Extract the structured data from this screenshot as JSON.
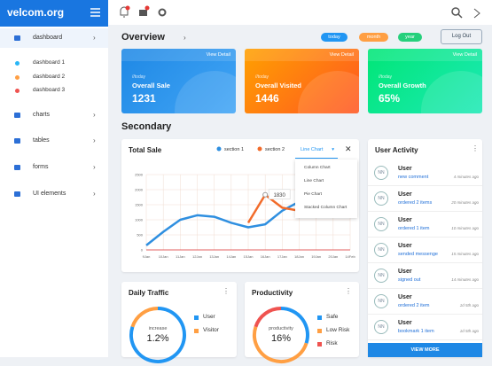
{
  "sidebar": {
    "brand": "velcom.org",
    "menu": [
      {
        "label": "dashboard"
      },
      {
        "label": "charts"
      },
      {
        "label": "tables"
      },
      {
        "label": "forms"
      },
      {
        "label": "UI elements"
      }
    ],
    "submenu": [
      "dashboard 1",
      "dashboard 2",
      "dashboard 3"
    ]
  },
  "overview": {
    "title": "Overview",
    "filters": [
      "today",
      "month",
      "year"
    ],
    "logout": "Log Out",
    "cards": [
      {
        "link": "View Detail",
        "period": "//today",
        "title": "Overall Sale",
        "value": "1231"
      },
      {
        "link": "View Detail",
        "period": "//today",
        "title": "Overall Visited",
        "value": "1446"
      },
      {
        "link": "View Detail",
        "period": "//today",
        "title": "Overall Growth",
        "value": "65%"
      }
    ]
  },
  "secondary": {
    "title": "Secondary"
  },
  "total_sale": {
    "title": "Total Sale",
    "dropdown": "Line Chart",
    "options": [
      "Column Chart",
      "Line Chart",
      "Pie Chart",
      "Stacked Column Chart"
    ],
    "chart": {
      "type": "line",
      "categories": [
        "9Jan",
        "10Jan",
        "11Jan",
        "12Jan",
        "13Jan",
        "14Jan",
        "15Jan",
        "16Jan",
        "17Jan",
        "18Jan",
        "19Jan",
        "20Jan",
        "14Feb"
      ],
      "series": [
        {
          "name": "section 1",
          "color": "#2f8fe0",
          "values": [
            150,
            600,
            1000,
            1150,
            1100,
            900,
            750,
            850,
            1300,
            1600,
            1800,
            1850,
            1900
          ]
        },
        {
          "name": "section 2",
          "color": "#f26b2a",
          "values": [
            null,
            null,
            null,
            null,
            null,
            null,
            900,
            1830,
            1400,
            1300,
            1700,
            1950,
            2100
          ]
        }
      ],
      "ylim": [
        0,
        2500
      ],
      "yticks": [
        0,
        500,
        1000,
        1500,
        2000,
        2500
      ],
      "grid": true
    }
  },
  "user_activity": {
    "title": "User Activity",
    "more": "VIEW MORE",
    "items": [
      {
        "avatar": "NN",
        "name": "User",
        "action": "new comment",
        "time": "4 minutes ago"
      },
      {
        "avatar": "NN",
        "name": "User",
        "action": "ordered 2 items",
        "time": "20 minutes ago"
      },
      {
        "avatar": "NN",
        "name": "User",
        "action": "ordered 1 item",
        "time": "10 minutes ago"
      },
      {
        "avatar": "NN",
        "name": "User",
        "action": "sended messenge",
        "time": "15 minutes ago"
      },
      {
        "avatar": "NN",
        "name": "User",
        "action": "signed out",
        "time": "14 minutes ago"
      },
      {
        "avatar": "NN",
        "name": "User",
        "action": "ordered 2 item",
        "time": "1d 5th ago"
      },
      {
        "avatar": "NN",
        "name": "User",
        "action": "bookmark 1 item",
        "time": "1d 5th ago"
      }
    ]
  },
  "daily_traffic": {
    "title": "Daily Traffic",
    "caption": "increase",
    "value": "1.2%",
    "legend": [
      "User",
      "Visitor"
    ]
  },
  "productivity": {
    "title": "Productivity",
    "caption": "productivity",
    "value": "16%",
    "legend": [
      "Safe",
      "Low Risk",
      "Risk"
    ]
  }
}
